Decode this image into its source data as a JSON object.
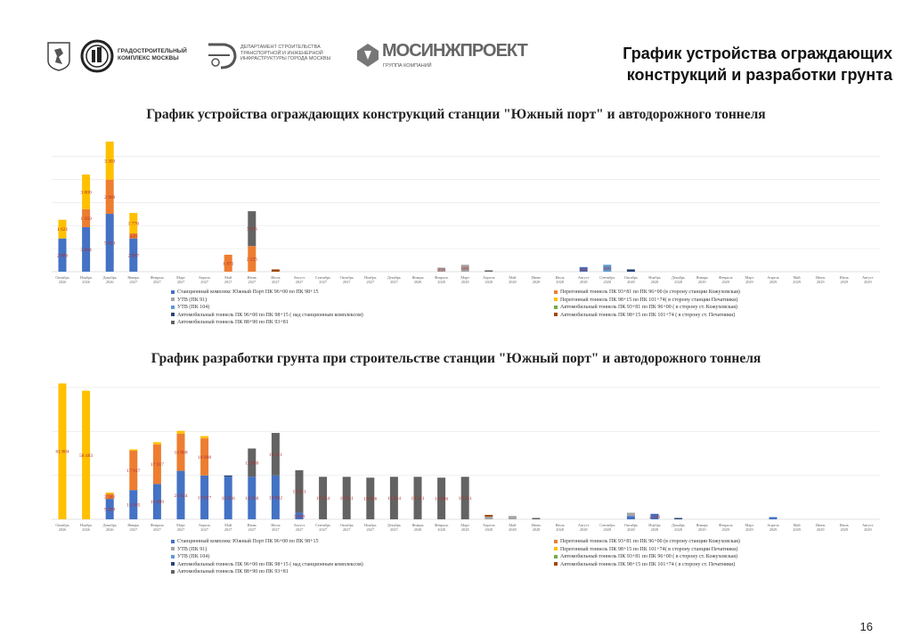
{
  "header": {
    "title": "График устройства ограждающих конструкций и разработки грунта",
    "logos": [
      {
        "name": "moscow-coat-of-arms"
      },
      {
        "name": "gradostroitelny-kompleks",
        "text": "ГРАДОСТРОИТЕЛЬНЫЙ КОМПЛЕКС МОСКВЫ"
      },
      {
        "name": "department-transport",
        "text": "ДЕПАРТАМЕНТ СТРОИТЕЛЬСТВА ТРАНСПОРТНОЙ И ИНЖЕНЕРНОЙ ИНФРАСТРУКТУРЫ ГОРОДА МОСКВЫ"
      },
      {
        "name": "mosinzhproekt",
        "text": "МОСИНЖПРОЕКТ",
        "subtext": "ГРУППА КОМПАНИЙ"
      }
    ]
  },
  "page_number": "16",
  "legend": {
    "left": [
      {
        "label": "Станционный комплекс Южный Порт ПК 96+00 по ПК 98+15",
        "color": "#4472c4"
      },
      {
        "label": "УТВ (ПК 91)",
        "color": "#a5a5a5"
      },
      {
        "label": "УТВ (ПК 104)",
        "color": "#5b9bd5"
      },
      {
        "label": "Автомобильный тоннель ПК 96+00 по ПК 98+15 ( над станционным комплексом)",
        "color": "#264478"
      },
      {
        "label": "Автомобильный тоннель ПК 88+90 по ПК 93+81",
        "color": "#636363"
      }
    ],
    "right": [
      {
        "label": "Перегонный тоннель ПК 93+81 по ПК 96+00 (в сторону станции Кожуховская)",
        "color": "#ed7d31"
      },
      {
        "label": "Перегонный тоннель ПК 98+15 по ПК 101+74( в сторону станции Печатники)",
        "color": "#ffc000"
      },
      {
        "label": "Автомобильный тоннель ПК 93+81 по ПК 96+00 ( в сторону ст. Кожуховская)",
        "color": "#70ad47"
      },
      {
        "label": "Автомобильный тоннель ПК 98+15 по ПК 101+74 ( в сторону ст. Печатники)",
        "color": "#9e480e"
      }
    ]
  },
  "chart_data": [
    {
      "type": "bar",
      "stacked": true,
      "title": "График устройства ограждающих конструкций станции \"Южный порт\"  и автодорожного тоннеля",
      "grid": true,
      "legend_position": "bottom",
      "categories": [
        "Октябрь 2026",
        "Ноябрь 2026",
        "Декабрь 2026",
        "Январь 2027",
        "Февраль 2027",
        "Март 2027",
        "Апрель 2027",
        "Май 2027",
        "Июнь 2027",
        "Июль 2027",
        "Август 2027",
        "Сентябрь 2027",
        "Октябрь 2027",
        "Ноябрь 2027",
        "Декабрь 2027",
        "Январь 2028",
        "Февраль 2028",
        "Март 2028",
        "Апрель 2028",
        "Май 2028",
        "Июнь 2028",
        "Июль 2028",
        "Август 2028",
        "Сентябрь 2028",
        "Октябрь 2028",
        "Ноябрь 2028",
        "Декабрь 2028",
        "Январь 2029",
        "Февраль 2029",
        "Март 2029",
        "Апрель 2029",
        "Май 2029",
        "Июнь 2029",
        "Июль 2029",
        "Август 2029"
      ],
      "ylim": [
        0,
        11600
      ],
      "series": [
        {
          "name": "Станционный комплекс Южный Порт ПК 96+00 по ПК 98+15",
          "color": "#4472c4",
          "values": [
            2886,
            3864,
            5023,
            2887,
            0,
            0,
            0,
            0,
            0,
            0,
            0,
            0,
            0,
            0,
            0,
            0,
            0,
            0,
            0,
            0,
            0,
            0,
            400,
            0,
            0,
            0,
            0,
            0,
            0,
            0,
            0,
            0,
            0,
            0,
            0
          ]
        },
        {
          "name": "Перегонный тоннель ПК 93+81 по ПК 96+00 (в сторону станции Кожуховская)",
          "color": "#ed7d31",
          "values": [
            0,
            1569,
            2969,
            439,
            0,
            0,
            0,
            1471,
            2225,
            0,
            0,
            0,
            0,
            0,
            0,
            0,
            0,
            0,
            0,
            0,
            0,
            0,
            0,
            0,
            0,
            0,
            0,
            0,
            0,
            0,
            0,
            0,
            0,
            0,
            0
          ]
        },
        {
          "name": "УТВ (ПК 91)",
          "color": "#a5a5a5",
          "values": [
            0,
            0,
            0,
            0,
            0,
            0,
            0,
            0,
            0,
            0,
            0,
            0,
            0,
            0,
            0,
            0,
            350,
            600,
            0,
            0,
            0,
            0,
            0,
            0,
            0,
            0,
            0,
            0,
            0,
            0,
            0,
            0,
            0,
            0,
            0
          ]
        },
        {
          "name": "Перегонный тоннель ПК 98+15 по ПК 101+74( в сторону станции Печатники)",
          "color": "#ffc000",
          "values": [
            1621,
            3000,
            3303,
            1776,
            0,
            0,
            0,
            0,
            0,
            0,
            0,
            0,
            0,
            0,
            0,
            0,
            0,
            0,
            0,
            0,
            0,
            0,
            0,
            0,
            0,
            0,
            0,
            0,
            0,
            0,
            0,
            0,
            0,
            0,
            0
          ]
        },
        {
          "name": "УТВ (ПК 104)",
          "color": "#5b9bd5",
          "values": [
            0,
            0,
            0,
            0,
            0,
            0,
            0,
            0,
            0,
            0,
            0,
            0,
            0,
            0,
            0,
            0,
            0,
            0,
            0,
            0,
            0,
            0,
            0,
            600,
            0,
            0,
            0,
            0,
            0,
            0,
            0,
            0,
            0,
            0,
            0
          ]
        },
        {
          "name": "Автомобильный тоннель ПК 93+81 по ПК 96+00 ( в сторону ст. Кожуховская)",
          "color": "#70ad47",
          "values": [
            0,
            0,
            0,
            0,
            0,
            0,
            0,
            0,
            0,
            0,
            0,
            0,
            0,
            0,
            0,
            0,
            0,
            0,
            0,
            0,
            0,
            0,
            0,
            0,
            0,
            0,
            0,
            0,
            0,
            0,
            0,
            0,
            0,
            0,
            0
          ]
        },
        {
          "name": "Автомобильный тоннель ПК 96+00 по ПК 98+15 ( над станционным комплексом)",
          "color": "#264478",
          "values": [
            0,
            0,
            0,
            0,
            0,
            0,
            0,
            0,
            0,
            0,
            0,
            0,
            0,
            0,
            0,
            0,
            0,
            0,
            0,
            0,
            0,
            0,
            0,
            0,
            200,
            0,
            0,
            0,
            0,
            0,
            0,
            0,
            0,
            0,
            0
          ]
        },
        {
          "name": "Автомобильный тоннель ПК 88+90 по ПК 93+81",
          "color": "#636363",
          "values": [
            0,
            0,
            0,
            0,
            0,
            0,
            0,
            0,
            3025,
            0,
            0,
            0,
            0,
            0,
            0,
            0,
            0,
            0,
            100,
            0,
            0,
            0,
            0,
            0,
            0,
            0,
            0,
            0,
            0,
            0,
            0,
            0,
            0,
            0,
            0
          ]
        },
        {
          "name": "Автомобильный тоннель ПК 98+15 по ПК 101+74 ( в сторону ст. Печатники)",
          "color": "#9e480e",
          "values": [
            0,
            0,
            0,
            0,
            0,
            0,
            0,
            0,
            0,
            200,
            0,
            0,
            0,
            0,
            0,
            0,
            0,
            0,
            0,
            0,
            0,
            0,
            0,
            0,
            0,
            0,
            0,
            0,
            0,
            0,
            0,
            0,
            0,
            0,
            0
          ]
        }
      ]
    },
    {
      "type": "bar",
      "stacked": true,
      "title": "График разработки грунта при строительстве станции \"Южный порт\"  и автодорожного тоннеля",
      "grid": true,
      "legend_position": "bottom",
      "categories": [
        "Октябрь 2026",
        "Ноябрь 2026",
        "Декабрь 2026",
        "Январь 2027",
        "Февраль 2027",
        "Март 2027",
        "Апрель 2027",
        "Май 2027",
        "Июнь 2027",
        "Июль 2027",
        "Август 2027",
        "Сентябрь 2027",
        "Октябрь 2027",
        "Ноябрь 2027",
        "Декабрь 2027",
        "Январь 2028",
        "Февраль 2028",
        "Март 2028",
        "Апрель 2028",
        "Май 2028",
        "Июнь 2028",
        "Июль 2028",
        "Август 2028",
        "Сентябрь 2028",
        "Октябрь 2028",
        "Ноябрь 2028",
        "Декабрь 2028",
        "Январь 2029",
        "Февраль 2029",
        "Март 2029",
        "Апрель 2029",
        "Май 2029",
        "Июнь 2029",
        "Июль 2029",
        "Август 2029"
      ],
      "ylim": [
        0,
        62000
      ],
      "series": [
        {
          "name": "Станционный комплекс Южный Порт ПК 96+00 по ПК 98+15",
          "color": "#4472c4",
          "values": [
            0,
            0,
            9288,
            13305,
            16099,
            22054,
            19927,
            19336,
            19336,
            19962,
            3009,
            0,
            0,
            0,
            0,
            0,
            0,
            0,
            0,
            0,
            0,
            0,
            0,
            0,
            1500,
            2500,
            0,
            0,
            0,
            0,
            1000,
            0,
            0,
            0,
            0
          ]
        },
        {
          "name": "Перегонный тоннель ПК 93+81 по ПК 96+00 (в сторону станции Кожуховская)",
          "color": "#ed7d31",
          "values": [
            0,
            0,
            2261,
            17917,
            17917,
            16908,
            16908,
            0,
            0,
            0,
            0,
            0,
            0,
            0,
            0,
            0,
            0,
            0,
            0,
            0,
            0,
            0,
            0,
            0,
            0,
            0,
            0,
            0,
            0,
            0,
            0,
            0,
            0,
            0,
            0
          ]
        },
        {
          "name": "УТВ (ПК 91)",
          "color": "#a5a5a5",
          "values": [
            0,
            0,
            0,
            0,
            0,
            0,
            0,
            0,
            0,
            0,
            0,
            0,
            0,
            0,
            0,
            0,
            0,
            0,
            1200,
            1500,
            0,
            0,
            0,
            0,
            1500,
            0,
            0,
            0,
            0,
            0,
            0,
            0,
            0,
            0,
            0
          ]
        },
        {
          "name": "Перегонный тоннель ПК 98+15 по ПК 101+74( в сторону станции Печатники)",
          "color": "#ffc000",
          "values": [
            61804,
            58483,
            467,
            287,
            1080,
            1280,
            1023,
            0,
            0,
            0,
            0,
            0,
            0,
            0,
            0,
            0,
            0,
            0,
            0,
            0,
            0,
            0,
            0,
            0,
            0,
            0,
            0,
            0,
            0,
            0,
            0,
            0,
            0,
            0,
            0
          ]
        },
        {
          "name": "УТВ (ПК 104)",
          "color": "#5b9bd5",
          "values": [
            0,
            0,
            0,
            0,
            0,
            0,
            0,
            0,
            0,
            0,
            0,
            0,
            0,
            0,
            0,
            0,
            0,
            0,
            0,
            0,
            0,
            0,
            0,
            0,
            0,
            0,
            0,
            0,
            0,
            0,
            0,
            0,
            0,
            0,
            0
          ]
        },
        {
          "name": "Автомобильный тоннель ПК 93+81 по ПК 96+00 ( в сторону ст. Кожуховская)",
          "color": "#70ad47",
          "values": [
            0,
            0,
            0,
            0,
            0,
            0,
            0,
            0,
            0,
            0,
            0,
            0,
            0,
            0,
            0,
            0,
            0,
            0,
            0,
            0,
            0,
            0,
            0,
            0,
            0,
            0,
            0,
            0,
            0,
            0,
            0,
            0,
            0,
            0,
            0
          ]
        },
        {
          "name": "Автомобильный тоннель ПК 96+00 по ПК 98+15 ( над станционным комплексом)",
          "color": "#264478",
          "values": [
            0,
            0,
            0,
            0,
            0,
            0,
            0,
            346,
            0,
            0,
            0,
            0,
            0,
            0,
            0,
            0,
            0,
            0,
            0,
            0,
            0,
            0,
            0,
            0,
            0,
            0,
            300,
            0,
            0,
            0,
            0,
            0,
            0,
            0,
            0
          ]
        },
        {
          "name": "Автомобильный тоннель ПК 88+90 по ПК 93+81",
          "color": "#636363",
          "values": [
            0,
            0,
            0,
            0,
            0,
            0,
            0,
            0,
            12880,
            19331,
            19331,
            19334,
            19331,
            18936,
            19334,
            19331,
            18936,
            19331,
            0,
            0,
            146,
            0,
            0,
            0,
            0,
            0,
            0,
            0,
            0,
            0,
            0,
            0,
            0,
            0,
            0
          ]
        },
        {
          "name": "Автомобильный тоннель ПК 98+15 по ПК 101+74 ( в сторону ст. Печатники)",
          "color": "#9e480e",
          "values": [
            0,
            0,
            0,
            0,
            0,
            0,
            0,
            0,
            0,
            0,
            0,
            0,
            0,
            0,
            0,
            0,
            0,
            0,
            800,
            0,
            0,
            0,
            0,
            0,
            0,
            0,
            0,
            0,
            0,
            0,
            0,
            0,
            0,
            0,
            0
          ]
        }
      ]
    }
  ]
}
